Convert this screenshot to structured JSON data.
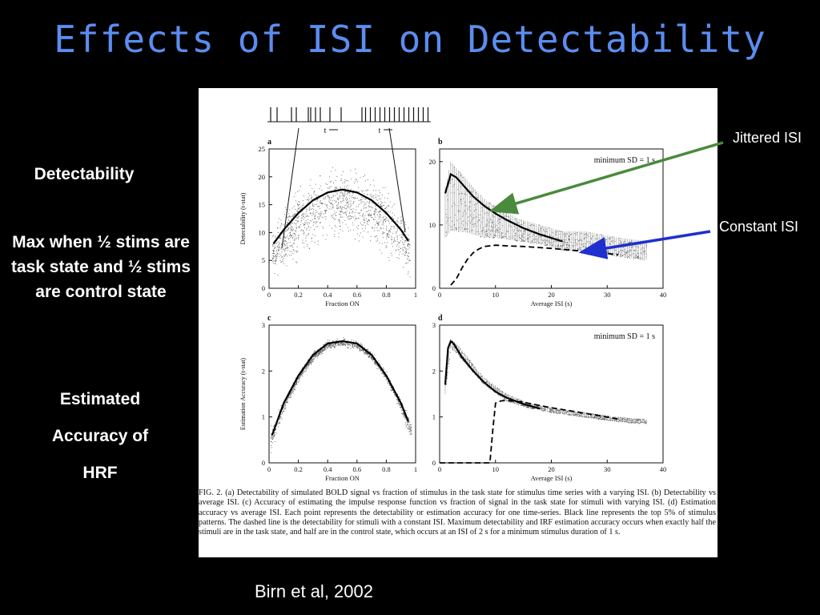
{
  "slide": {
    "title": "Effects of ISI on Detectability",
    "side_detectability": "Detectability",
    "side_max": "Max when ½ stims are task state and ½ stims are control state",
    "side_estimated_lines": [
      "Estimated",
      "Accuracy of",
      "HRF"
    ],
    "annotation_jittered": "Jittered ISI",
    "annotation_constant": "Constant ISI",
    "citation": "Birn et al, 2002",
    "colors": {
      "title": "#5b8df0",
      "jittered_arrow": "#4a8a3c",
      "constant_arrow": "#1f2fd0",
      "background": "#000000"
    }
  },
  "figure": {
    "caption": "FIG. 2.   (a) Detectability of simulated BOLD signal vs fraction of stimulus in the task state for stimulus time series with a varying ISI. (b) Detectability vs average ISI. (c) Accuracy of estimating the impulse response function vs fraction of signal in the task state for stimuli with varying ISI. (d) Estimation accuracy vs average ISI. Each point represents the detectability or estimation accuracy for one time-series. Black line represents the top 5% of stimulus patterns. The dashed line is the detectability for stimuli with a constant ISI. Maximum detectability and IRF estimation accuracy occurs when exactly half the stimuli are in the task state, and half are in the control state, which occurs at an ISI of 2 s for a minimum stimulus duration of 1 s.",
    "inset_axis_label": "t"
  },
  "chart_data": [
    {
      "panel": "a",
      "type": "scatter",
      "xlabel": "Fraction ON",
      "ylabel": "Detectability (t-stat)",
      "xlim": [
        0,
        1
      ],
      "ylim": [
        0,
        25
      ],
      "xticks": [
        "0",
        "0.2",
        "0.4",
        "0.6",
        "0.8",
        "1"
      ],
      "yticks": [
        "0",
        "5",
        "10",
        "15",
        "20",
        "25"
      ],
      "series": [
        {
          "style": "top5-line",
          "x": [
            0.03,
            0.1,
            0.2,
            0.3,
            0.4,
            0.5,
            0.6,
            0.7,
            0.8,
            0.9,
            0.95
          ],
          "y": [
            8,
            10.5,
            13.5,
            15.8,
            17.2,
            17.7,
            17.2,
            15.8,
            13.5,
            10.5,
            8.5
          ]
        }
      ],
      "scatter_band": {
        "x": [
          0.02,
          0.1,
          0.2,
          0.3,
          0.4,
          0.5,
          0.6,
          0.7,
          0.8,
          0.9,
          0.96
        ],
        "low": [
          3,
          5,
          7.5,
          9.5,
          10.5,
          11,
          10.5,
          9.5,
          7.5,
          5,
          3.5
        ],
        "high": [
          9,
          13,
          16.5,
          18.5,
          19.5,
          20,
          19.5,
          18.5,
          16.5,
          13,
          9
        ]
      }
    },
    {
      "panel": "b",
      "type": "line",
      "annotation": "minimum SD = 1 s",
      "xlabel": "Average ISI (s)",
      "ylabel": "",
      "xlim": [
        0,
        40
      ],
      "ylim": [
        0,
        22
      ],
      "xticks": [
        "0",
        "10",
        "20",
        "30",
        "40"
      ],
      "yticks": [
        "0",
        "10",
        "20"
      ],
      "series": [
        {
          "style": "top5-line",
          "x": [
            1,
            2,
            3,
            4,
            6,
            8,
            10,
            12,
            15,
            18,
            22
          ],
          "y": [
            15,
            18,
            17.5,
            16.5,
            14.5,
            13,
            11.8,
            10.8,
            9.5,
            8.5,
            7.4
          ]
        },
        {
          "style": "dashed",
          "x": [
            2,
            3,
            4,
            5,
            6,
            7,
            8,
            10,
            12,
            15,
            20,
            25,
            30,
            32
          ],
          "y": [
            0.5,
            1.5,
            3.2,
            4.6,
            5.6,
            6.2,
            6.6,
            6.8,
            6.7,
            6.6,
            6.3,
            5.9,
            5.5,
            5.3
          ]
        }
      ],
      "scatter_band": {
        "x": [
          1,
          2,
          4,
          6,
          8,
          10,
          14,
          18,
          22,
          26,
          32,
          37
        ],
        "low": [
          8,
          9,
          9,
          8.5,
          8,
          8,
          7.5,
          7,
          6,
          6,
          5,
          4.5
        ],
        "high": [
          16,
          20,
          18,
          16,
          14,
          13,
          11,
          10,
          9,
          9,
          8,
          7.5
        ]
      }
    },
    {
      "panel": "c",
      "type": "scatter",
      "xlabel": "Fraction ON",
      "ylabel": "Estimation Accuracy (t-stat)",
      "xlim": [
        0,
        1
      ],
      "ylim": [
        0,
        3
      ],
      "xticks": [
        "0",
        "0.2",
        "0.4",
        "0.6",
        "0.8",
        "1"
      ],
      "yticks": [
        "0",
        "1",
        "2",
        "3"
      ],
      "series": [
        {
          "style": "top5-line",
          "x": [
            0.02,
            0.1,
            0.2,
            0.3,
            0.4,
            0.5,
            0.6,
            0.7,
            0.8,
            0.9,
            0.95
          ],
          "y": [
            0.6,
            1.3,
            1.9,
            2.35,
            2.6,
            2.65,
            2.6,
            2.35,
            1.9,
            1.3,
            0.9
          ]
        }
      ],
      "scatter_band": {
        "x": [
          0.01,
          0.1,
          0.2,
          0.3,
          0.4,
          0.5,
          0.6,
          0.7,
          0.8,
          0.9,
          0.97
        ],
        "low": [
          0.3,
          1.15,
          1.8,
          2.25,
          2.5,
          2.55,
          2.5,
          2.25,
          1.8,
          1.15,
          0.5
        ],
        "high": [
          0.7,
          1.35,
          1.95,
          2.4,
          2.65,
          2.7,
          2.65,
          2.4,
          1.95,
          1.35,
          0.85
        ]
      }
    },
    {
      "panel": "d",
      "type": "line",
      "annotation": "minimum SD = 1 s",
      "xlabel": "Average ISI (s)",
      "ylabel": "",
      "xlim": [
        0,
        40
      ],
      "ylim": [
        0,
        3
      ],
      "xticks": [
        "0",
        "10",
        "20",
        "30",
        "40"
      ],
      "yticks": [
        "0",
        "1",
        "2",
        "3"
      ],
      "series": [
        {
          "style": "top5-line",
          "x": [
            1,
            1.5,
            2,
            2.5,
            3,
            4,
            6,
            8,
            10,
            12,
            15,
            18
          ],
          "y": [
            1.7,
            2.5,
            2.65,
            2.6,
            2.5,
            2.3,
            2,
            1.75,
            1.55,
            1.42,
            1.28,
            1.18
          ]
        },
        {
          "style": "dashed",
          "x": [
            0,
            9,
            9.5,
            10,
            11,
            12,
            15,
            20,
            25,
            30,
            32
          ],
          "y": [
            0,
            0,
            0.7,
            1.3,
            1.35,
            1.36,
            1.32,
            1.2,
            1.1,
            1,
            0.95
          ]
        }
      ],
      "scatter_band": {
        "x": [
          1,
          2,
          3,
          5,
          8,
          12,
          16,
          20,
          26,
          32,
          37
        ],
        "low": [
          1.5,
          2.5,
          2.4,
          2.1,
          1.7,
          1.35,
          1.2,
          1.1,
          1,
          0.9,
          0.85
        ],
        "high": [
          1.9,
          2.7,
          2.6,
          2.3,
          1.85,
          1.5,
          1.3,
          1.2,
          1.1,
          1,
          0.95
        ]
      }
    }
  ]
}
